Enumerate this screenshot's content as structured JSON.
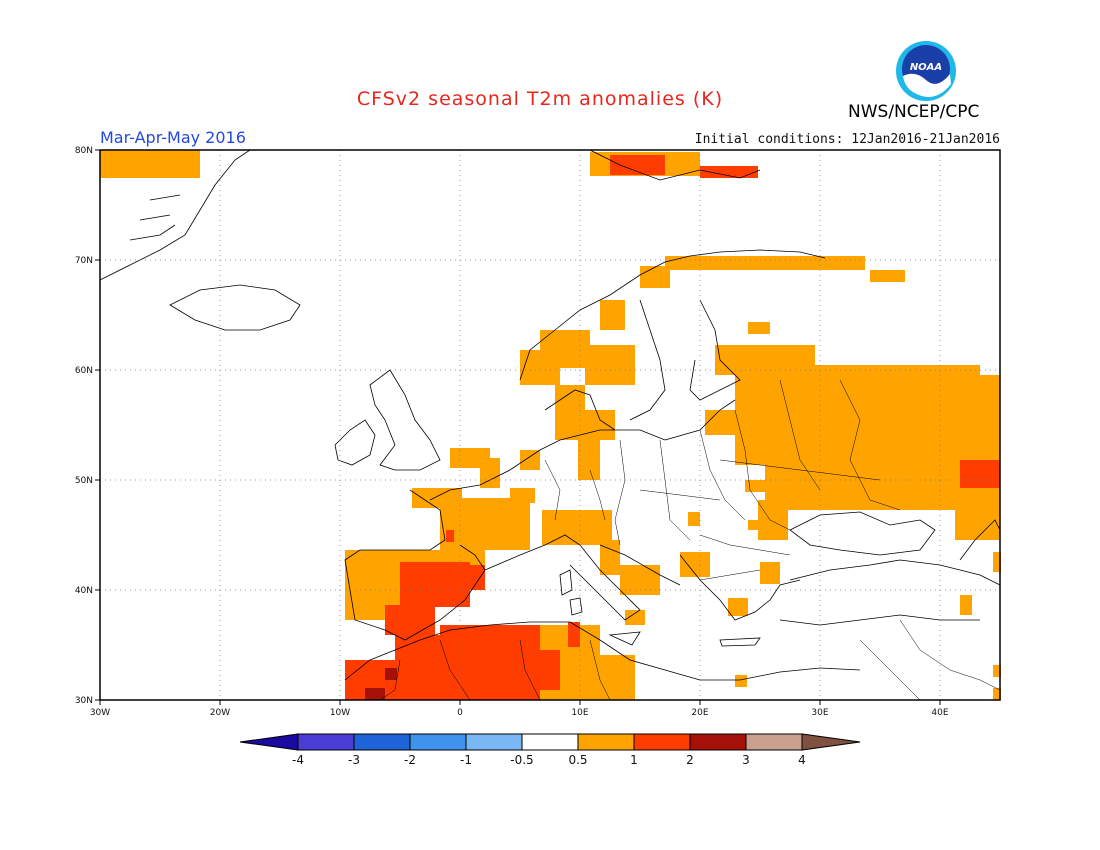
{
  "title": "CFSv2 seasonal T2m anomalies (K)",
  "period": "Mar-Apr-May 2016",
  "initial_conditions": "Initial conditions: 12Jan2016-21Jan2016",
  "agency": "NWS/NCEP/CPC",
  "logo_text": "NOAA",
  "logo_icon": "noaa-logo-icon",
  "lat_labels": [
    "80N",
    "70N",
    "60N",
    "50N",
    "40N",
    "30N"
  ],
  "lon_labels": [
    "30W",
    "20W",
    "10W",
    "0",
    "10E",
    "20E",
    "30E",
    "40E"
  ],
  "colorbar": {
    "ticks": [
      "-4",
      "-3",
      "-2",
      "-1",
      "-0.5",
      "0.5",
      "1",
      "2",
      "3",
      "4"
    ],
    "colors": [
      "#1b0aa0",
      "#4a3dd6",
      "#1f63d8",
      "#3f93ec",
      "#7ab8f5",
      "#ffffff",
      "#ffa300",
      "#ff3d00",
      "#a51008",
      "#c9a08e",
      "#805040"
    ]
  },
  "anomaly_colors": {
    "0.5-1": "#ffa300",
    "1-2": "#ff3d00",
    "2-3": "#a51008"
  }
}
